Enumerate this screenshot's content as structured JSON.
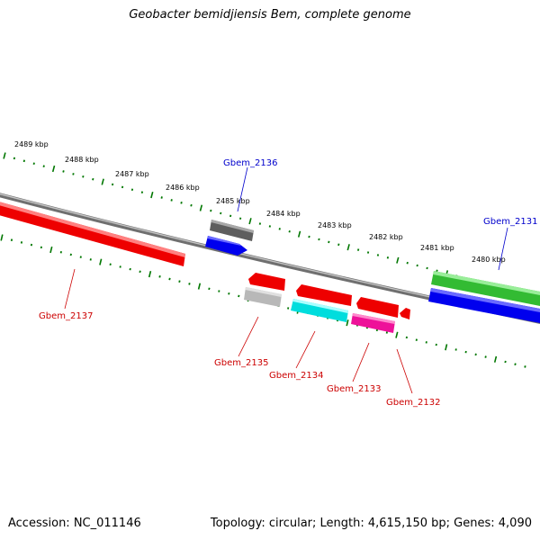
{
  "title": "Geobacter bemidjiensis Bem, complete genome",
  "footer": {
    "accession": "Accession: NC_011146",
    "stats": "Topology: circular; Length: 4,615,150 bp; Genes: 4,090"
  },
  "colors": {
    "strand_label_forward": "#0000cc",
    "strand_label_reverse": "#cc0000",
    "tick_green": "#007700",
    "backbone": "#808080"
  },
  "kbp_scale": [
    {
      "label": "2489 kbp",
      "value": 2489
    },
    {
      "label": "2488 kbp",
      "value": 2488
    },
    {
      "label": "2487 kbp",
      "value": 2487
    },
    {
      "label": "2486 kbp",
      "value": 2486
    },
    {
      "label": "2485 kbp",
      "value": 2485
    },
    {
      "label": "2484 kbp",
      "value": 2484
    },
    {
      "label": "2483 kbp",
      "value": 2483
    },
    {
      "label": "2482 kbp",
      "value": 2482
    },
    {
      "label": "2481 kbp",
      "value": 2481
    },
    {
      "label": "2480 kbp",
      "value": 2480
    }
  ],
  "genes": [
    {
      "id": "Gbem_2136",
      "strand": "forward"
    },
    {
      "id": "Gbem_2131",
      "strand": "forward"
    },
    {
      "id": "Gbem_2137",
      "strand": "reverse"
    },
    {
      "id": "Gbem_2135",
      "strand": "reverse"
    },
    {
      "id": "Gbem_2134",
      "strand": "reverse"
    },
    {
      "id": "Gbem_2133",
      "strand": "reverse"
    },
    {
      "id": "Gbem_2132",
      "strand": "reverse"
    }
  ]
}
